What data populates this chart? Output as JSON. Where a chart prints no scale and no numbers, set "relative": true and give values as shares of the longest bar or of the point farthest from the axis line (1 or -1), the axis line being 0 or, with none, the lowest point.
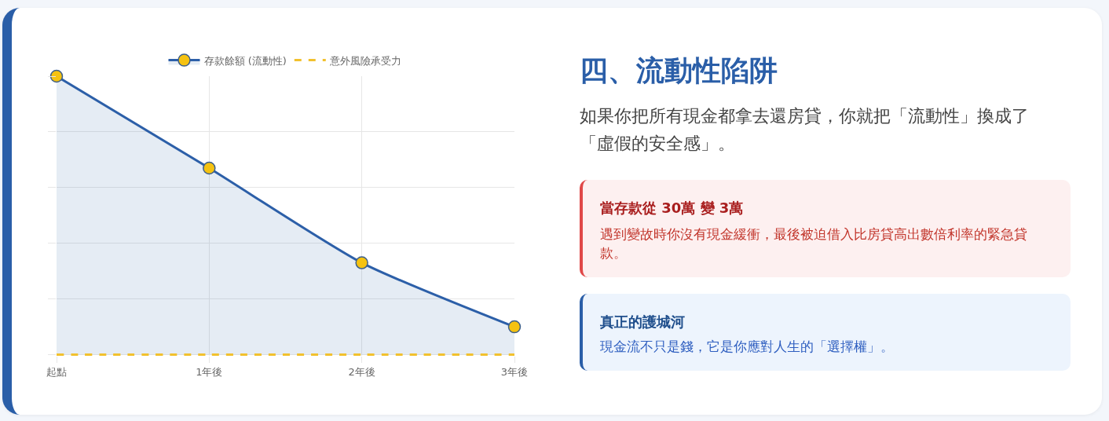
{
  "chart_data": [
    {
      "type": "area",
      "relative": true,
      "categories": [
        "起點",
        "1年後",
        "2年後",
        "3年後"
      ],
      "series": [
        {
          "name": "存款餘額 (流動性)",
          "type": "area",
          "color": "#2c5fa8",
          "colors": [
            "#f5c211",
            "#f5c211",
            "#f5c211",
            "#f5c211"
          ],
          "values": [
            1,
            0.67,
            0.33,
            0.1
          ]
        },
        {
          "name": "意外風險承受力",
          "type": "line",
          "color": "#f2c12e",
          "values": [
            0,
            0,
            0,
            0
          ],
          "marker": "none",
          "line_style": "dashed"
        }
      ],
      "grid": true,
      "legend": "top",
      "tick_labels": "x",
      "marker": "circle",
      "line_style": "solid"
    },
    {
      "type": "other",
      "title": "四、流動性陷阱",
      "subtitle": "如果你把所有現金都拿去還房貸，你就把「流動性」換成了「虛假的安全感」。",
      "annotations": [
        "當存款從 30萬 變 3萬",
        "遇到變故時你沒有現金緩衝，最後被迫借入比房貸高出數倍利率的緊急貸款。",
        "真正的護城河",
        "現金流不只是錢，它是你應對人生的「選擇權」。"
      ]
    }
  ]
}
